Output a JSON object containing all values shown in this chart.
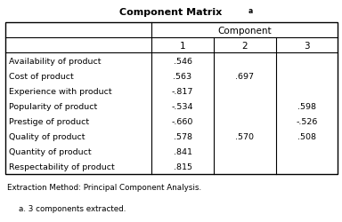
{
  "title": "Component Matrix",
  "title_super": "a",
  "col_header_span": "Component",
  "col_subheaders": [
    "1",
    "2",
    "3"
  ],
  "row_labels": [
    "Availability of product",
    "Cost of product",
    "Experience with product",
    "Popularity of product",
    "Prestige of product",
    "Quality of product",
    "Quantity of product",
    "Respectability of product"
  ],
  "data": [
    [
      ".546",
      "",
      ""
    ],
    [
      ".563",
      ".697",
      ""
    ],
    [
      "-.817",
      "",
      ""
    ],
    [
      "-.534",
      "",
      ".598"
    ],
    [
      "-.660",
      "",
      "-.526"
    ],
    [
      ".578",
      ".570",
      ".508"
    ],
    [
      ".841",
      "",
      ""
    ],
    [
      ".815",
      "",
      ""
    ]
  ],
  "footnote1": "Extraction Method: Principal Component Analysis.",
  "footnote2": "a. 3 components extracted.",
  "bg_color": "#ffffff"
}
